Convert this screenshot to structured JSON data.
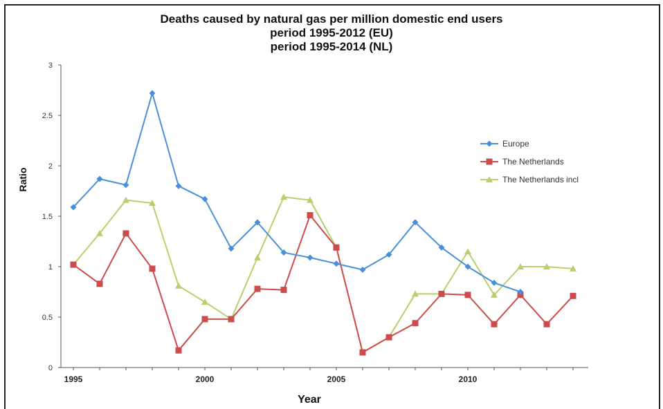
{
  "chart_data": {
    "type": "line",
    "title": "Deaths caused by natural gas per million domestic end users",
    "subtitle_lines": [
      "period 1995-2012 (EU)",
      "period 1995-2014 (NL)"
    ],
    "xlabel": "Year",
    "ylabel": "Ratio",
    "xlim": [
      1995,
      2014
    ],
    "ylim": [
      0,
      3
    ],
    "x_ticks": [
      1995,
      2000,
      2005,
      2010
    ],
    "y_ticks": [
      0,
      0.5,
      1,
      1.5,
      2,
      2.5,
      3
    ],
    "y_tick_labels": [
      "0",
      "0.5",
      "1",
      "1.5",
      "2",
      "2.5",
      "3"
    ],
    "grid": false,
    "legend_position": "right",
    "series": [
      {
        "name": "Europe",
        "color": "#4a90d9",
        "marker": "diamond",
        "x": [
          1995,
          1996,
          1997,
          1998,
          1999,
          2000,
          2001,
          2002,
          2003,
          2004,
          2005,
          2006,
          2007,
          2008,
          2009,
          2010,
          2011,
          2012
        ],
        "y": [
          1.59,
          1.87,
          1.81,
          2.72,
          1.8,
          1.67,
          1.18,
          1.44,
          1.14,
          1.09,
          1.03,
          0.97,
          1.12,
          1.44,
          1.19,
          1.0,
          0.84,
          0.75
        ]
      },
      {
        "name": "The Netherlands",
        "color": "#cc4b4b",
        "marker": "square",
        "x": [
          1995,
          1996,
          1997,
          1998,
          1999,
          2000,
          2001,
          2002,
          2003,
          2004,
          2005,
          2006,
          2007,
          2008,
          2009,
          2010,
          2011,
          2012,
          2013,
          2014
        ],
        "y": [
          1.02,
          0.83,
          1.33,
          0.98,
          0.17,
          0.48,
          0.48,
          0.78,
          0.77,
          1.51,
          1.19,
          0.15,
          0.3,
          0.44,
          0.73,
          0.72,
          0.43,
          0.72,
          0.43,
          0.71
        ]
      },
      {
        "name": "The Netherlands incl",
        "color": "#b9cf6b",
        "marker": "triangle",
        "x": [
          1995,
          1996,
          1997,
          1998,
          1999,
          2000,
          2001,
          2002,
          2003,
          2004,
          2005,
          2006,
          2007,
          2008,
          2009,
          2010,
          2011,
          2012,
          2013,
          2014
        ],
        "y": [
          1.02,
          1.33,
          1.66,
          1.63,
          0.81,
          0.65,
          0.48,
          1.09,
          1.69,
          1.66,
          1.19,
          0.15,
          0.3,
          0.73,
          0.73,
          1.15,
          0.72,
          1.0,
          1.0,
          0.98
        ]
      }
    ]
  }
}
